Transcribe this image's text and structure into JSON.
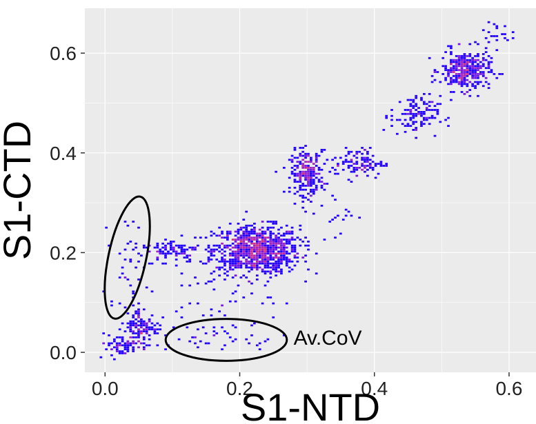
{
  "chart_data": {
    "type": "heatmap",
    "title": "",
    "xlabel": "S1-NTD",
    "ylabel": "S1-CTD",
    "xlim": [
      -0.03,
      0.64
    ],
    "ylim": [
      -0.04,
      0.69
    ],
    "xticks": [
      0.0,
      0.2,
      0.4,
      0.6
    ],
    "xtick_labels": [
      "0.0",
      "0.2",
      "0.4",
      "0.6"
    ],
    "yticks": [
      0.0,
      0.2,
      0.4,
      0.6
    ],
    "ytick_labels": [
      "0.0",
      "0.2",
      "0.4",
      "0.6"
    ],
    "grid": true,
    "legend": "none",
    "colors": {
      "panel": "#ebebeb",
      "grid": "#ffffff",
      "low": "#2200ff",
      "mid": "#8c1fd9",
      "high": "#e8336b",
      "annotation": "#000000"
    },
    "clusters": [
      {
        "x": 0.225,
        "y": 0.205,
        "sx": 0.032,
        "sy": 0.024,
        "count": 900,
        "peak": "high"
      },
      {
        "x": 0.3,
        "y": 0.36,
        "sx": 0.012,
        "sy": 0.022,
        "count": 230,
        "peak": "high"
      },
      {
        "x": 0.535,
        "y": 0.565,
        "sx": 0.018,
        "sy": 0.02,
        "count": 330,
        "peak": "high"
      },
      {
        "x": 0.46,
        "y": 0.475,
        "sx": 0.018,
        "sy": 0.02,
        "count": 110,
        "peak": "mid"
      },
      {
        "x": 0.375,
        "y": 0.38,
        "sx": 0.02,
        "sy": 0.015,
        "count": 110,
        "peak": "mid"
      },
      {
        "x": 0.1,
        "y": 0.205,
        "sx": 0.02,
        "sy": 0.012,
        "count": 80,
        "peak": "mid"
      },
      {
        "x": 0.055,
        "y": 0.05,
        "sx": 0.013,
        "sy": 0.02,
        "count": 120,
        "peak": "mid"
      },
      {
        "x": 0.025,
        "y": 0.015,
        "sx": 0.02,
        "sy": 0.01,
        "count": 70,
        "peak": "low"
      },
      {
        "x": 0.035,
        "y": 0.18,
        "sx": 0.013,
        "sy": 0.045,
        "count": 40,
        "peak": "low"
      },
      {
        "x": 0.18,
        "y": 0.03,
        "sx": 0.045,
        "sy": 0.015,
        "count": 40,
        "peak": "low"
      },
      {
        "x": 0.16,
        "y": 0.13,
        "sx": 0.045,
        "sy": 0.05,
        "count": 60,
        "peak": "low"
      },
      {
        "x": 0.58,
        "y": 0.64,
        "sx": 0.012,
        "sy": 0.015,
        "count": 20,
        "peak": "low"
      },
      {
        "x": 0.34,
        "y": 0.28,
        "sx": 0.02,
        "sy": 0.02,
        "count": 20,
        "peak": "low"
      }
    ],
    "annotations": [
      {
        "shape": "ellipse",
        "cx": 0.033,
        "cy": 0.19,
        "rx": 0.028,
        "ry": 0.125,
        "rotate": 12
      },
      {
        "shape": "ellipse",
        "cx": 0.18,
        "cy": 0.025,
        "rx": 0.09,
        "ry": 0.042,
        "rotate": 0
      },
      {
        "shape": "text",
        "text": "Av.CoV",
        "x": 0.28,
        "y": 0.015
      }
    ]
  }
}
